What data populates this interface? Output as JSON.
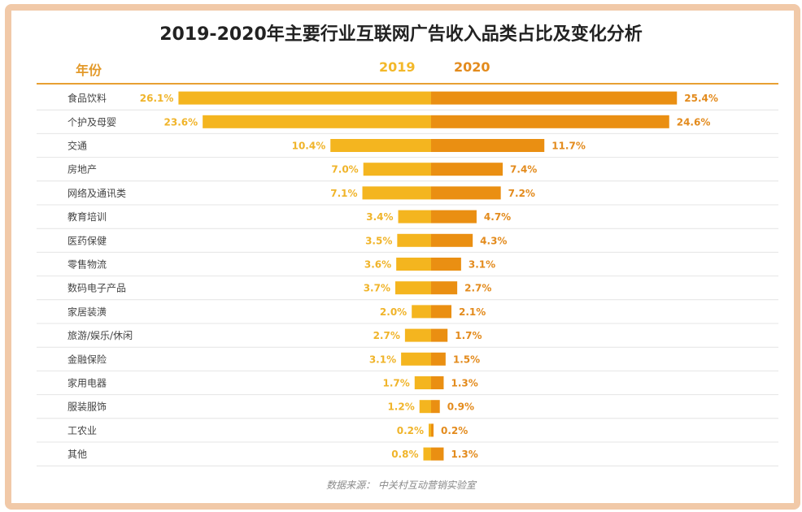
{
  "title": "2019-2020年主要行业互联网广告收入品类占比及变化分析",
  "headers": {
    "category": "年份",
    "year_a": "2019",
    "year_b": "2020"
  },
  "source": "数据来源：  中关村互动营销实验室",
  "colors": {
    "y2019": "#f4b51f",
    "y2020": "#ea8f12",
    "label2019": "#f0b42a",
    "label2020": "#e38b1d",
    "row_line": "#e4e4e4",
    "category_text": "#444444"
  },
  "chart_data": {
    "type": "bar",
    "categories": [
      "食品饮料",
      "个护及母婴",
      "交通",
      "房地产",
      "网络及通讯类",
      "教育培训",
      "医药保健",
      "零售物流",
      "数码电子产品",
      "家居装潢",
      "旅游/娱乐/休闲",
      "金融保险",
      "家用电器",
      "服装服饰",
      "工农业",
      "其他"
    ],
    "series": [
      {
        "name": "2019",
        "values": [
          26.1,
          23.6,
          10.4,
          7.0,
          7.1,
          3.4,
          3.5,
          3.6,
          3.7,
          2.0,
          2.7,
          3.1,
          1.7,
          1.2,
          0.2,
          0.8
        ],
        "labels": [
          "26.1%",
          "23.6%",
          "10.4%",
          "7.0%",
          "7.1%",
          "3.4%",
          "3.5%",
          "3.6%",
          "3.7%",
          "2.0%",
          "2.7%",
          "3.1%",
          "1.7%",
          "1.2%",
          "0.2%",
          "0.8%"
        ]
      },
      {
        "name": "2020",
        "values": [
          25.4,
          24.6,
          11.7,
          7.4,
          7.2,
          4.7,
          4.3,
          3.1,
          2.7,
          2.1,
          1.7,
          1.5,
          1.3,
          0.9,
          0.2,
          1.3
        ],
        "labels": [
          "25.4%",
          "24.6%",
          "11.7%",
          "7.4%",
          "7.2%",
          "4.7%",
          "4.3%",
          "3.1%",
          "2.7%",
          "2.1%",
          "1.7%",
          "1.5%",
          "1.3%",
          "0.9%",
          "0.2%",
          "1.3%"
        ]
      }
    ],
    "unit": "%",
    "orientation": "horizontal-butterfly"
  }
}
